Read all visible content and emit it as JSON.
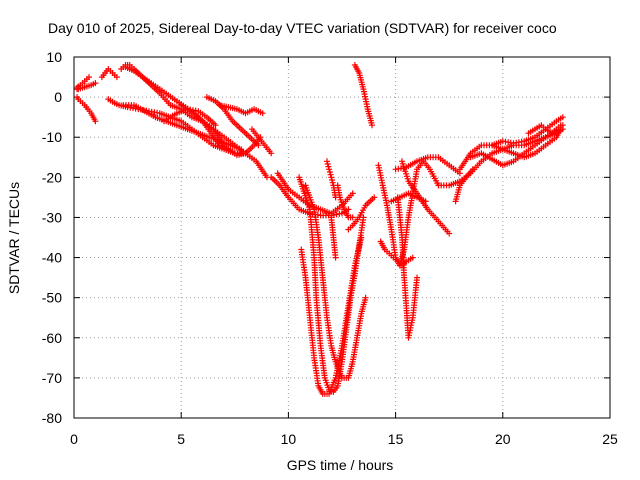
{
  "chart_data": {
    "type": "scatter",
    "title": "Day 010 of 2025, Sidereal Day-to-day VTEC variation (SDTVAR) for receiver coco",
    "xlabel": "GPS time / hours",
    "ylabel": "SDTVAR / TECUs",
    "xlim": [
      0,
      25
    ],
    "ylim": [
      -80,
      10
    ],
    "x_ticks": [
      "0",
      "5",
      "10",
      "15",
      "20",
      "25"
    ],
    "y_ticks": [
      "10",
      "0",
      "-10",
      "-20",
      "-30",
      "-40",
      "-50",
      "-60",
      "-70",
      "-80"
    ],
    "grid": true,
    "marker": "+",
    "color": "#ff0000",
    "series": [
      {
        "points": [
          [
            0.0,
            2
          ],
          [
            0.3,
            3
          ],
          [
            0.5,
            4
          ],
          [
            0.7,
            5
          ]
        ]
      },
      {
        "points": [
          [
            0.1,
            0
          ],
          [
            0.3,
            -1
          ],
          [
            0.5,
            -2
          ],
          [
            0.8,
            -4
          ],
          [
            1.0,
            -6
          ]
        ]
      },
      {
        "points": [
          [
            0.2,
            2
          ],
          [
            0.5,
            2.5
          ],
          [
            0.8,
            3
          ],
          [
            1.0,
            3.5
          ]
        ]
      },
      {
        "points": [
          [
            1.3,
            5
          ],
          [
            1.6,
            7
          ],
          [
            1.8,
            6
          ],
          [
            2.0,
            5
          ]
        ]
      },
      {
        "points": [
          [
            2.2,
            7
          ],
          [
            2.4,
            8
          ],
          [
            2.6,
            8
          ],
          [
            2.8,
            7
          ],
          [
            3.2,
            5
          ],
          [
            3.6,
            3
          ],
          [
            4.0,
            1
          ],
          [
            4.5,
            -2
          ],
          [
            5.0,
            -3
          ],
          [
            5.5,
            -5
          ],
          [
            6.0,
            -6
          ],
          [
            6.5,
            -8
          ],
          [
            7.0,
            -12
          ],
          [
            7.5,
            -14
          ],
          [
            8.0,
            -14
          ]
        ]
      },
      {
        "points": [
          [
            2.4,
            7.5
          ],
          [
            2.8,
            6.5
          ],
          [
            3.2,
            5
          ],
          [
            3.6,
            3.5
          ],
          [
            4.0,
            2
          ],
          [
            4.4,
            0.5
          ],
          [
            4.8,
            -1
          ],
          [
            5.2,
            -2.5
          ],
          [
            5.6,
            -4
          ],
          [
            6.0,
            -6
          ],
          [
            6.4,
            -9
          ],
          [
            6.8,
            -12
          ],
          [
            7.2,
            -13
          ],
          [
            7.6,
            -14.5
          ],
          [
            8.0,
            -14
          ],
          [
            8.4,
            -12
          ],
          [
            8.7,
            -10
          ]
        ]
      },
      {
        "points": [
          [
            1.6,
            -0.5
          ],
          [
            1.9,
            -1.5
          ],
          [
            2.1,
            -2
          ],
          [
            2.5,
            -2.5
          ],
          [
            3.0,
            -3
          ],
          [
            3.5,
            -3.5
          ],
          [
            4.0,
            -4
          ],
          [
            4.5,
            -5
          ],
          [
            5.0,
            -6
          ],
          [
            5.5,
            -8
          ],
          [
            6.0,
            -10
          ],
          [
            6.5,
            -12
          ],
          [
            7.0,
            -13
          ],
          [
            7.5,
            -14
          ],
          [
            8.0,
            -14
          ]
        ]
      },
      {
        "points": [
          [
            2.3,
            -2
          ],
          [
            2.8,
            -2
          ],
          [
            3.3,
            -3.5
          ],
          [
            3.8,
            -5
          ],
          [
            4.3,
            -6
          ],
          [
            4.8,
            -7
          ],
          [
            5.3,
            -8
          ],
          [
            5.8,
            -9
          ],
          [
            6.3,
            -10
          ],
          [
            6.8,
            -11
          ],
          [
            7.3,
            -12
          ],
          [
            7.8,
            -13
          ]
        ]
      },
      {
        "points": [
          [
            4.2,
            -6
          ],
          [
            4.8,
            -4
          ],
          [
            5.3,
            -3
          ],
          [
            5.8,
            -3.5
          ],
          [
            6.2,
            -5
          ],
          [
            6.6,
            -7
          ]
        ]
      },
      {
        "points": [
          [
            5.0,
            -2
          ],
          [
            5.5,
            -4
          ],
          [
            6.0,
            -6
          ],
          [
            6.5,
            -8
          ],
          [
            7.0,
            -10
          ],
          [
            7.5,
            -12
          ],
          [
            8.0,
            -14
          ],
          [
            8.5,
            -16
          ],
          [
            9.0,
            -20
          ]
        ]
      },
      {
        "points": [
          [
            6.2,
            0
          ],
          [
            6.6,
            -1
          ],
          [
            7.0,
            -3
          ],
          [
            7.4,
            -6
          ],
          [
            7.8,
            -8
          ],
          [
            8.2,
            -10
          ],
          [
            8.6,
            -12
          ]
        ]
      },
      {
        "points": [
          [
            6.8,
            -2
          ],
          [
            7.2,
            -2.5
          ],
          [
            7.6,
            -3
          ],
          [
            8.0,
            -4
          ],
          [
            8.4,
            -3
          ],
          [
            8.8,
            -4
          ]
        ]
      },
      {
        "points": [
          [
            8.3,
            -8
          ],
          [
            8.6,
            -10
          ],
          [
            8.9,
            -12
          ],
          [
            9.2,
            -14
          ]
        ]
      },
      {
        "points": [
          [
            9.2,
            -20
          ],
          [
            9.6,
            -22
          ],
          [
            10.0,
            -25
          ],
          [
            10.5,
            -28
          ],
          [
            11.0,
            -29
          ],
          [
            11.5,
            -29.5
          ],
          [
            12.0,
            -29.5
          ],
          [
            12.5,
            -29
          ],
          [
            12.8,
            -28
          ]
        ]
      },
      {
        "points": [
          [
            9.5,
            -19
          ],
          [
            10.0,
            -23
          ],
          [
            10.5,
            -25
          ],
          [
            11.0,
            -27
          ],
          [
            11.5,
            -28
          ],
          [
            12.0,
            -29
          ],
          [
            12.5,
            -27
          ],
          [
            13.0,
            -24
          ]
        ]
      },
      {
        "points": [
          [
            10.8,
            -22
          ],
          [
            11.2,
            -28
          ],
          [
            11.4,
            -35
          ],
          [
            11.6,
            -45
          ],
          [
            11.8,
            -55
          ],
          [
            12.0,
            -62
          ],
          [
            12.2,
            -66
          ],
          [
            12.5,
            -70
          ],
          [
            12.8,
            -70
          ],
          [
            13.0,
            -66
          ],
          [
            13.2,
            -60
          ],
          [
            13.4,
            -54
          ],
          [
            13.6,
            -50
          ]
        ]
      },
      {
        "points": [
          [
            10.5,
            -20
          ],
          [
            11.0,
            -28
          ],
          [
            11.2,
            -40
          ],
          [
            11.3,
            -50
          ],
          [
            11.5,
            -62
          ],
          [
            11.7,
            -70
          ],
          [
            11.9,
            -73
          ],
          [
            12.1,
            -73.5
          ],
          [
            12.3,
            -72
          ],
          [
            12.5,
            -66
          ],
          [
            12.7,
            -58
          ],
          [
            12.9,
            -50
          ],
          [
            13.1,
            -44
          ],
          [
            13.3,
            -37
          ],
          [
            13.5,
            -30
          ]
        ]
      },
      {
        "points": [
          [
            10.6,
            -38
          ],
          [
            10.8,
            -45
          ],
          [
            11.0,
            -55
          ],
          [
            11.2,
            -65
          ],
          [
            11.4,
            -72
          ],
          [
            11.6,
            -74
          ],
          [
            11.9,
            -74
          ],
          [
            12.2,
            -70
          ],
          [
            12.5,
            -62
          ],
          [
            12.8,
            -52
          ],
          [
            13.1,
            -42
          ],
          [
            13.4,
            -35
          ]
        ]
      },
      {
        "points": [
          [
            11.8,
            -16
          ],
          [
            11.9,
            -18
          ],
          [
            12.0,
            -20
          ],
          [
            12.1,
            -22
          ],
          [
            12.2,
            -25
          ]
        ]
      },
      {
        "points": [
          [
            12.0,
            -30
          ],
          [
            12.1,
            -35
          ],
          [
            12.2,
            -40
          ]
        ]
      },
      {
        "points": [
          [
            12.3,
            -22
          ],
          [
            12.4,
            -25
          ],
          [
            12.6,
            -28
          ],
          [
            12.8,
            -30
          ],
          [
            13.0,
            -30
          ]
        ]
      },
      {
        "points": [
          [
            12.8,
            -33
          ],
          [
            13.0,
            -32
          ],
          [
            13.3,
            -30
          ],
          [
            13.6,
            -27
          ],
          [
            14.0,
            -25
          ]
        ]
      },
      {
        "points": [
          [
            13.1,
            8
          ],
          [
            13.3,
            6
          ],
          [
            13.5,
            2
          ],
          [
            13.7,
            -3
          ],
          [
            13.9,
            -7
          ]
        ]
      },
      {
        "points": [
          [
            14.2,
            -17
          ],
          [
            14.4,
            -22
          ],
          [
            14.6,
            -27
          ],
          [
            14.8,
            -33
          ],
          [
            15.0,
            -40
          ],
          [
            15.2,
            -42
          ],
          [
            15.4,
            -38
          ],
          [
            15.6,
            -30
          ],
          [
            15.8,
            -24
          ],
          [
            16.0,
            -18
          ],
          [
            16.3,
            -16
          ],
          [
            16.6,
            -18
          ],
          [
            17.0,
            -22
          ]
        ]
      },
      {
        "points": [
          [
            14.3,
            -36
          ],
          [
            14.5,
            -38
          ],
          [
            14.7,
            -39
          ],
          [
            14.9,
            -40
          ],
          [
            15.1,
            -41
          ],
          [
            15.3,
            -42
          ],
          [
            15.5,
            -41
          ],
          [
            15.8,
            -40
          ]
        ]
      },
      {
        "points": [
          [
            15.1,
            -25
          ],
          [
            15.3,
            -35
          ],
          [
            15.4,
            -45
          ],
          [
            15.5,
            -52
          ],
          [
            15.6,
            -60
          ],
          [
            15.8,
            -55
          ],
          [
            16.0,
            -45
          ]
        ]
      },
      {
        "points": [
          [
            15.0,
            -18
          ],
          [
            15.5,
            -17.5
          ],
          [
            16.0,
            -16
          ],
          [
            16.5,
            -15
          ],
          [
            17.0,
            -15
          ],
          [
            17.5,
            -17
          ],
          [
            18.0,
            -19
          ]
        ]
      },
      {
        "points": [
          [
            15.3,
            -16
          ],
          [
            15.6,
            -21
          ],
          [
            16.0,
            -24
          ],
          [
            16.5,
            -28
          ],
          [
            17.0,
            -31
          ],
          [
            17.5,
            -34
          ]
        ]
      },
      {
        "points": [
          [
            14.8,
            -26
          ],
          [
            15.2,
            -25
          ],
          [
            15.6,
            -24
          ],
          [
            16.0,
            -25
          ],
          [
            16.4,
            -26
          ]
        ]
      },
      {
        "points": [
          [
            17.8,
            -26
          ],
          [
            18.0,
            -22
          ],
          [
            18.3,
            -20
          ],
          [
            18.6,
            -18
          ]
        ]
      },
      {
        "points": [
          [
            17.0,
            -22
          ],
          [
            17.5,
            -22
          ],
          [
            18.0,
            -21
          ],
          [
            18.5,
            -19
          ],
          [
            19.0,
            -16
          ],
          [
            19.5,
            -14
          ],
          [
            20.0,
            -13
          ],
          [
            20.5,
            -12
          ],
          [
            21.0,
            -12
          ],
          [
            21.5,
            -11
          ],
          [
            22.0,
            -10
          ],
          [
            22.5,
            -8
          ],
          [
            22.7,
            -7
          ]
        ]
      },
      {
        "points": [
          [
            18.0,
            -18
          ],
          [
            18.5,
            -14
          ],
          [
            19.0,
            -12
          ],
          [
            19.5,
            -12
          ],
          [
            20.0,
            -13
          ],
          [
            20.5,
            -14
          ],
          [
            21.0,
            -15
          ],
          [
            21.5,
            -14
          ],
          [
            22.0,
            -12
          ],
          [
            22.5,
            -10
          ],
          [
            22.7,
            -8
          ]
        ]
      },
      {
        "points": [
          [
            18.5,
            -15
          ],
          [
            19.0,
            -14
          ],
          [
            19.5,
            -15.5
          ],
          [
            20.0,
            -17
          ],
          [
            20.5,
            -16
          ],
          [
            21.0,
            -14
          ],
          [
            21.5,
            -12
          ],
          [
            22.0,
            -10
          ],
          [
            22.5,
            -9
          ],
          [
            22.8,
            -8
          ]
        ]
      },
      {
        "points": [
          [
            19.5,
            -12
          ],
          [
            20.0,
            -11
          ],
          [
            20.5,
            -11.5
          ],
          [
            21.0,
            -11
          ],
          [
            21.5,
            -10
          ],
          [
            22.0,
            -8
          ],
          [
            22.5,
            -6
          ],
          [
            22.8,
            -5
          ]
        ]
      },
      {
        "points": [
          [
            21.2,
            -9
          ],
          [
            21.5,
            -8
          ],
          [
            21.8,
            -7
          ],
          [
            22.0,
            -8
          ],
          [
            22.3,
            -9
          ],
          [
            22.6,
            -8
          ],
          [
            22.8,
            -7
          ]
        ]
      }
    ]
  }
}
